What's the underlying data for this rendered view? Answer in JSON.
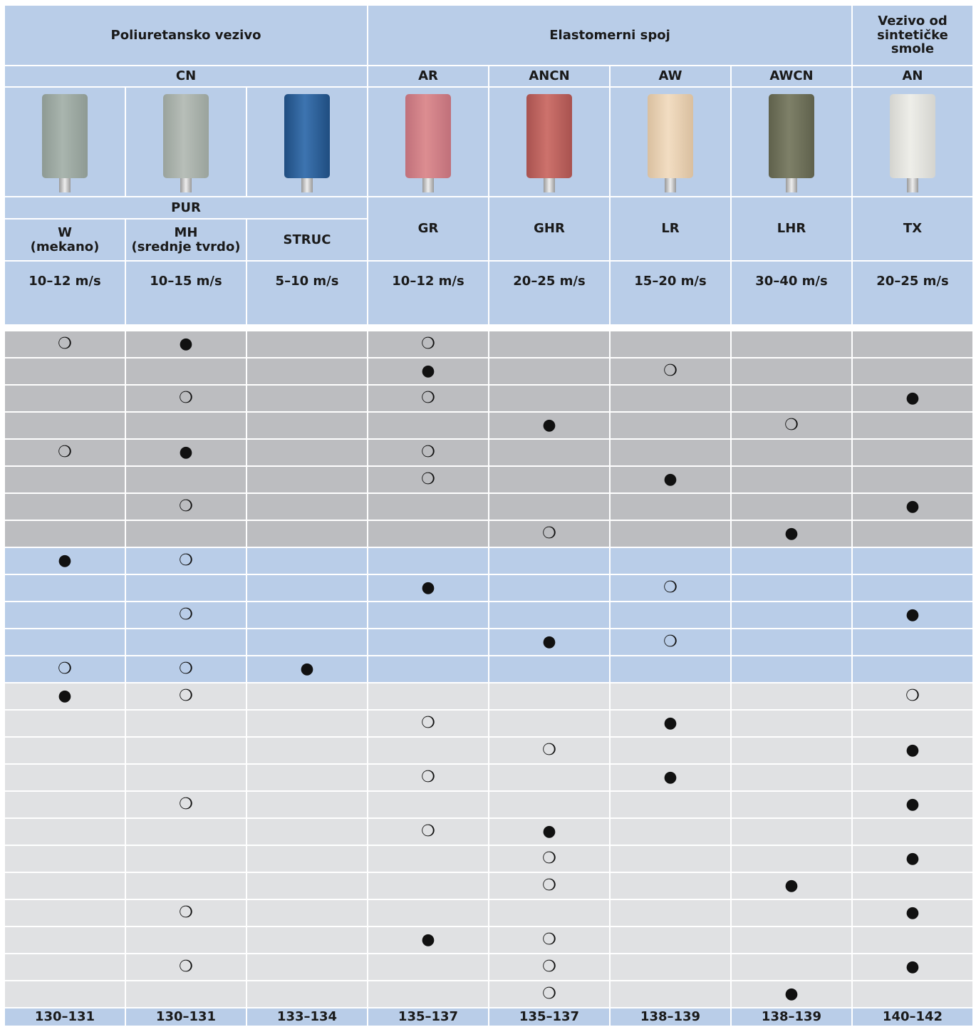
{
  "header": {
    "groups": [
      "Poliuretansko vezivo",
      "Elastomerni spoj",
      "Vezivo od\nsintetičke\nsmole"
    ],
    "codes": [
      "CN",
      "AR",
      "ANCN",
      "AW",
      "AWCN",
      "AN"
    ],
    "sub_group": "PUR",
    "grades": [
      "W\n(mekano)",
      "MH\n(srednje tvrdo)",
      "STRUC",
      "GR",
      "GHR",
      "LR",
      "LHR",
      "TX"
    ],
    "speeds": [
      "10–12 m/s",
      "10–15 m/s",
      "5–10 m/s",
      "10–12 m/s",
      "20–25 m/s",
      "15–20 m/s",
      "30–40 m/s",
      "20–25 m/s"
    ]
  },
  "table": {
    "rows": [
      [
        "❍",
        "●",
        null,
        "❍",
        null,
        null,
        null,
        null
      ],
      [
        null,
        null,
        null,
        "●",
        null,
        "❍",
        null,
        null
      ],
      [
        null,
        "❍",
        null,
        "❍",
        null,
        null,
        null,
        "●"
      ],
      [
        null,
        null,
        null,
        null,
        "●",
        null,
        "❍",
        null
      ],
      [
        "❍",
        "●",
        null,
        "❍",
        null,
        null,
        null,
        null
      ],
      [
        null,
        null,
        null,
        "❍",
        null,
        "●",
        null,
        null
      ],
      [
        null,
        "❍",
        null,
        null,
        null,
        null,
        null,
        "●"
      ],
      [
        null,
        null,
        null,
        null,
        "❍",
        null,
        "●",
        null
      ],
      [
        "●",
        "❍",
        null,
        null,
        null,
        null,
        null,
        null
      ],
      [
        null,
        null,
        null,
        "●",
        null,
        "❍",
        null,
        null
      ],
      [
        null,
        "❍",
        null,
        null,
        null,
        null,
        null,
        "●"
      ],
      [
        null,
        null,
        null,
        null,
        "●",
        "❍",
        null,
        null
      ],
      [
        "❍",
        "❍",
        "●",
        null,
        null,
        null,
        null,
        null
      ],
      [
        "●",
        "❍",
        null,
        null,
        null,
        null,
        null,
        "❍"
      ],
      [
        null,
        null,
        null,
        "❍",
        null,
        "●",
        null,
        null
      ],
      [
        null,
        null,
        null,
        null,
        "❍",
        null,
        null,
        "●"
      ],
      [
        null,
        null,
        null,
        "❍",
        null,
        "●",
        null,
        null
      ],
      [
        null,
        "❍",
        null,
        null,
        null,
        null,
        null,
        "●"
      ],
      [
        null,
        null,
        null,
        "❍",
        "●",
        null,
        null,
        null
      ],
      [
        null,
        null,
        null,
        null,
        "❍",
        null,
        null,
        "●"
      ],
      [
        null,
        null,
        null,
        null,
        "❍",
        null,
        "●",
        null
      ],
      [
        null,
        "❍",
        null,
        null,
        null,
        null,
        null,
        "●"
      ],
      [
        null,
        null,
        null,
        "●",
        "❍",
        null,
        null,
        null
      ],
      [
        null,
        "❍",
        null,
        null,
        "❍",
        null,
        null,
        "●"
      ],
      [
        null,
        null,
        null,
        null,
        "❍",
        null,
        "●",
        null
      ]
    ]
  },
  "footer": {
    "pages": [
      "130–131",
      "130–131",
      "133–134",
      "135–137",
      "135–137",
      "138–139",
      "138–139",
      "140–142"
    ]
  }
}
